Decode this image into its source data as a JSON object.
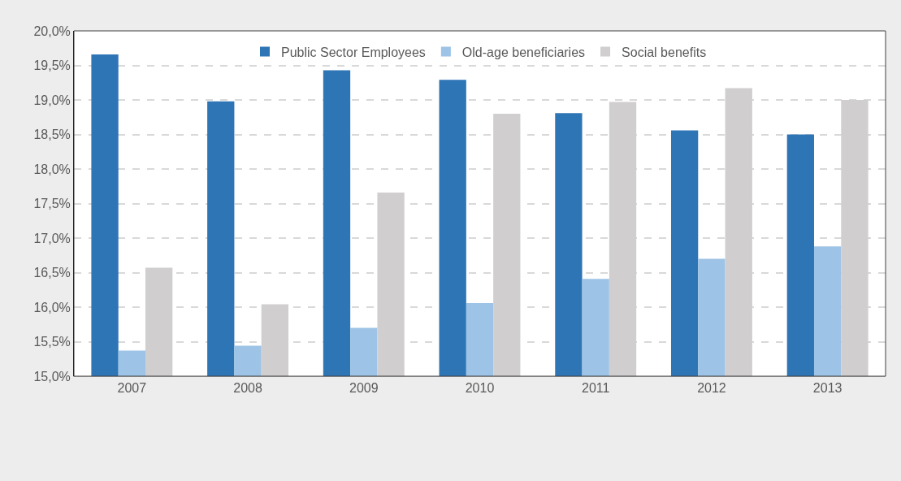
{
  "chart_data": {
    "type": "bar",
    "categories": [
      "2007",
      "2008",
      "2009",
      "2010",
      "2011",
      "2012",
      "2013"
    ],
    "series": [
      {
        "name": "Public Sector Employees",
        "color": "#2e75b6",
        "values": [
          19.66,
          18.98,
          19.43,
          19.29,
          18.81,
          18.56,
          18.5
        ]
      },
      {
        "name": "Old-age beneficiaries",
        "color": "#9dc3e6",
        "values": [
          15.37,
          15.44,
          15.7,
          16.06,
          16.41,
          16.7,
          16.88
        ]
      },
      {
        "name": "Social benefits",
        "color": "#d0cece",
        "values": [
          16.57,
          16.04,
          17.66,
          18.8,
          18.97,
          19.17,
          19.0
        ]
      }
    ],
    "ylim": [
      15,
      20
    ],
    "yticks": [
      {
        "value": 15,
        "label": "15,0%"
      },
      {
        "value": 15.5,
        "label": "15,5%"
      },
      {
        "value": 16,
        "label": "16,0%"
      },
      {
        "value": 16.5,
        "label": "16,5%"
      },
      {
        "value": 17,
        "label": "17,0%"
      },
      {
        "value": 17.5,
        "label": "17,5%"
      },
      {
        "value": 18,
        "label": "18,0%"
      },
      {
        "value": 18.5,
        "label": "18,5%"
      },
      {
        "value": 19,
        "label": "19,0%"
      },
      {
        "value": 19.5,
        "label": "19,5%"
      },
      {
        "value": 20,
        "label": "20,0%"
      }
    ],
    "grid": "y",
    "legend": "top"
  }
}
